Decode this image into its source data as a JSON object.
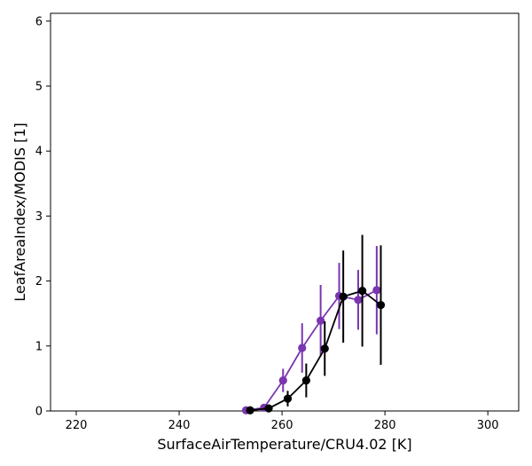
{
  "chart_data": {
    "type": "line",
    "title": "",
    "xlabel": "SurfaceAirTemperature/CRU4.02 [K]",
    "ylabel": "LeafAreaIndex/MODIS [1]",
    "xlim": [
      215,
      306
    ],
    "ylim": [
      0,
      6.12
    ],
    "xticks": [
      220,
      240,
      260,
      280,
      300
    ],
    "yticks": [
      0,
      1,
      2,
      3,
      4,
      5,
      6
    ],
    "grid": false,
    "series": [
      {
        "color": "#7b35b0",
        "points": [
          {
            "x": 253.0,
            "y": 0.01,
            "err": 0.02
          },
          {
            "x": 256.5,
            "y": 0.05,
            "err": 0.05
          },
          {
            "x": 260.2,
            "y": 0.47,
            "err": 0.18
          },
          {
            "x": 263.9,
            "y": 0.97,
            "err": 0.38
          },
          {
            "x": 267.5,
            "y": 1.39,
            "err": 0.55
          },
          {
            "x": 271.1,
            "y": 1.77,
            "err": 0.51
          },
          {
            "x": 274.8,
            "y": 1.71,
            "err": 0.46
          },
          {
            "x": 278.4,
            "y": 1.86,
            "err": 0.68
          }
        ]
      },
      {
        "color": "#000000",
        "points": [
          {
            "x": 253.8,
            "y": 0.01,
            "err": 0.02
          },
          {
            "x": 257.4,
            "y": 0.04,
            "err": 0.04
          },
          {
            "x": 261.1,
            "y": 0.19,
            "err": 0.12
          },
          {
            "x": 264.7,
            "y": 0.47,
            "err": 0.26
          },
          {
            "x": 268.3,
            "y": 0.96,
            "err": 0.42
          },
          {
            "x": 271.9,
            "y": 1.76,
            "err": 0.71
          },
          {
            "x": 275.6,
            "y": 1.85,
            "err": 0.86
          },
          {
            "x": 279.2,
            "y": 1.63,
            "err": 0.92
          }
        ]
      }
    ]
  }
}
